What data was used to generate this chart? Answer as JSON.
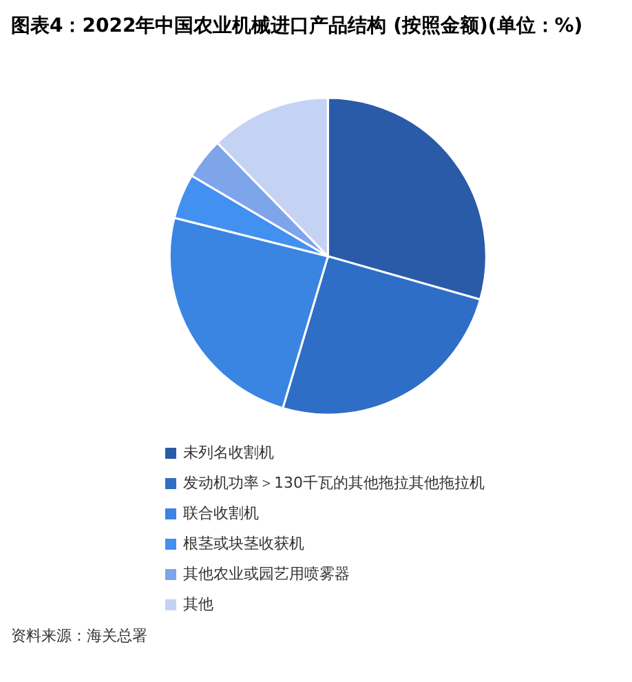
{
  "chart_data": {
    "type": "pie",
    "title": "图表4：2022年中国农业机械进口产品结构 (按照金额)(单位：%)",
    "categories": [
      "未列名收割机",
      "发动机功率＞130千瓦的其他拖拉其他拖拉机",
      "联合收割机",
      "根茎或块茎收获机",
      "其他农业或园艺用喷雾器",
      "其他"
    ],
    "values": [
      29.4,
      25.2,
      24.3,
      4.6,
      4.2,
      12.3
    ],
    "colors": [
      "#2a5ba8",
      "#2f6ec6",
      "#3a84e2",
      "#4290f0",
      "#7ea4ea",
      "#c4d2f4"
    ],
    "legend": "bottom",
    "annotations": [
      "资料来源：海关总署"
    ]
  }
}
